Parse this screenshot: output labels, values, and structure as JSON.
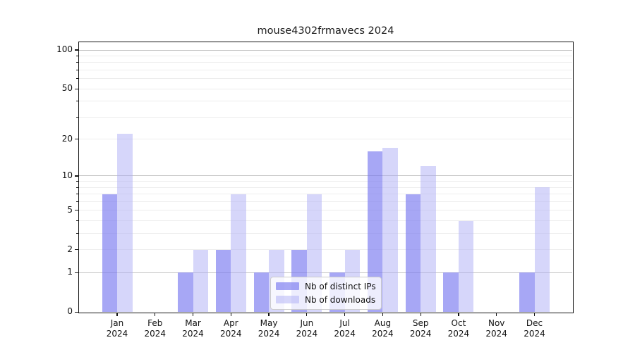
{
  "chart_data": {
    "type": "bar",
    "title": "mouse4302frmavecs 2024",
    "categories": [
      "Jan",
      "Feb",
      "Mar",
      "Apr",
      "May",
      "Jun",
      "Jul",
      "Aug",
      "Sep",
      "Oct",
      "Nov",
      "Dec"
    ],
    "year": "2024",
    "series": [
      {
        "name": "Nb of distinct IPs",
        "color": "rgba(122,122,240,0.66)",
        "values": [
          7,
          0,
          1,
          2,
          1,
          2,
          1,
          16,
          7,
          1,
          0,
          1
        ]
      },
      {
        "name": "Nb of downloads",
        "color": "rgba(170,170,245,0.48)",
        "values": [
          22,
          0,
          2,
          7,
          2,
          7,
          2,
          17,
          12,
          4,
          0,
          8
        ]
      }
    ],
    "ylabel": "",
    "xlabel": "",
    "yscale": "log10(1+v)",
    "ylim": [
      0,
      115
    ],
    "yticks": [
      0,
      1,
      2,
      5,
      10,
      20,
      50,
      100
    ],
    "grid": {
      "minor": [
        2,
        3,
        4,
        5,
        6,
        7,
        8,
        9,
        20,
        30,
        40,
        50,
        60,
        70,
        80,
        90
      ],
      "major": [
        1,
        10,
        100
      ]
    },
    "legend_position": "lower center"
  }
}
